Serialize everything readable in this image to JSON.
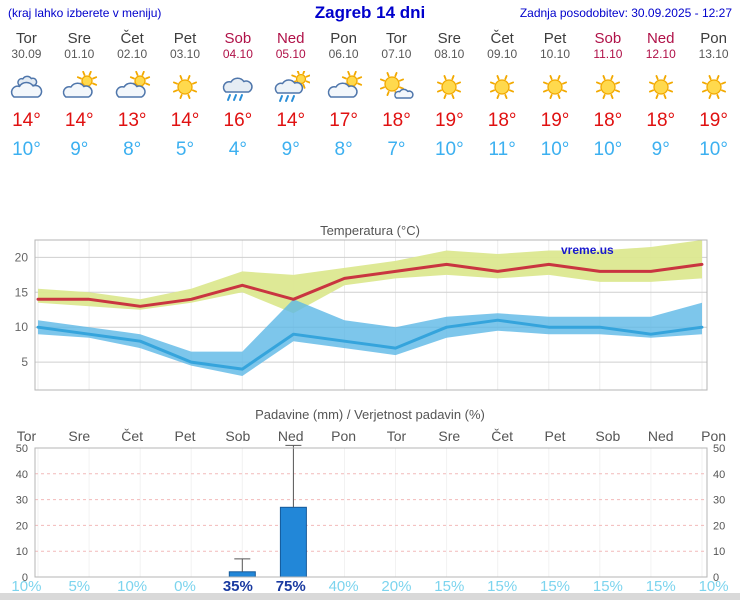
{
  "header": {
    "left_note": "(kraj lahko izberete v meniju)",
    "title": "Zagreb 14 dni",
    "updated": "Zadnja posodobitev: 30.09.2025 - 12:27"
  },
  "days": [
    {
      "name": "Tor",
      "date": "30.09",
      "weekend": false,
      "icon": "cloudy",
      "tmax": "14°",
      "tmin": "10°"
    },
    {
      "name": "Sre",
      "date": "01.10",
      "weekend": false,
      "icon": "partly",
      "tmax": "14°",
      "tmin": "9°"
    },
    {
      "name": "Čet",
      "date": "02.10",
      "weekend": false,
      "icon": "partly",
      "tmax": "13°",
      "tmin": "8°"
    },
    {
      "name": "Pet",
      "date": "03.10",
      "weekend": false,
      "icon": "sunny",
      "tmax": "14°",
      "tmin": "5°"
    },
    {
      "name": "Sob",
      "date": "04.10",
      "weekend": true,
      "icon": "rain",
      "tmax": "16°",
      "tmin": "4°"
    },
    {
      "name": "Ned",
      "date": "05.10",
      "weekend": true,
      "icon": "rain-sun",
      "tmax": "14°",
      "tmin": "9°"
    },
    {
      "name": "Pon",
      "date": "06.10",
      "weekend": false,
      "icon": "partly",
      "tmax": "17°",
      "tmin": "8°"
    },
    {
      "name": "Tor",
      "date": "07.10",
      "weekend": false,
      "icon": "mostly-sunny",
      "tmax": "18°",
      "tmin": "7°"
    },
    {
      "name": "Sre",
      "date": "08.10",
      "weekend": false,
      "icon": "sunny",
      "tmax": "19°",
      "tmin": "10°"
    },
    {
      "name": "Čet",
      "date": "09.10",
      "weekend": false,
      "icon": "sunny",
      "tmax": "18°",
      "tmin": "11°"
    },
    {
      "name": "Pet",
      "date": "10.10",
      "weekend": false,
      "icon": "sunny",
      "tmax": "19°",
      "tmin": "10°"
    },
    {
      "name": "Sob",
      "date": "11.10",
      "weekend": true,
      "icon": "sunny",
      "tmax": "18°",
      "tmin": "10°"
    },
    {
      "name": "Ned",
      "date": "12.10",
      "weekend": true,
      "icon": "sunny",
      "tmax": "18°",
      "tmin": "9°"
    },
    {
      "name": "Pon",
      "date": "13.10",
      "weekend": false,
      "icon": "sunny",
      "tmax": "19°",
      "tmin": "10°"
    }
  ],
  "chart_data": [
    {
      "type": "line",
      "title": "Temperatura (°C)",
      "watermark": "vreme.us",
      "x": [
        "30.09",
        "01.10",
        "02.10",
        "03.10",
        "04.10",
        "05.10",
        "06.10",
        "07.10",
        "08.10",
        "09.10",
        "10.10",
        "11.10",
        "12.10",
        "13.10"
      ],
      "yticks": [
        5,
        10,
        15,
        20
      ],
      "ylim": [
        1,
        22.5
      ],
      "grid": true,
      "legend": "none",
      "series": [
        {
          "name": "tmax",
          "color": "#c93540",
          "values": [
            14,
            14,
            13,
            14,
            16,
            14,
            17,
            18,
            19,
            18,
            19,
            18,
            18,
            19
          ]
        },
        {
          "name": "tmin",
          "color": "#35a4dc",
          "values": [
            10,
            9,
            8,
            5,
            4,
            9,
            8,
            7,
            10,
            11,
            10,
            10,
            9,
            10
          ]
        },
        {
          "name": "tmax_band_upper",
          "color": "#dce890",
          "values": [
            15.5,
            15,
            14,
            15.5,
            18,
            17.5,
            18.5,
            19.5,
            21,
            20.5,
            21,
            21,
            21.5,
            22.5
          ]
        },
        {
          "name": "tmax_band_lower",
          "color": "#dce890",
          "values": [
            13.5,
            13,
            12.5,
            13.5,
            15,
            12,
            16,
            17,
            17.5,
            17,
            17.5,
            16.5,
            16.5,
            17
          ]
        },
        {
          "name": "tmin_band_upper",
          "color": "#5cb8e6",
          "values": [
            11,
            10,
            9,
            6.5,
            6.5,
            14,
            11,
            10,
            11.5,
            12,
            11.5,
            11.5,
            11.5,
            13.5
          ]
        },
        {
          "name": "tmin_band_lower",
          "color": "#5cb8e6",
          "values": [
            9,
            8.5,
            7,
            4.5,
            3,
            8,
            7,
            6,
            8.5,
            9.5,
            9,
            9,
            8.5,
            9
          ]
        }
      ]
    },
    {
      "type": "bar",
      "title": "Padavine (mm) / Verjetnost padavin (%)",
      "categories": [
        "Tor",
        "Sre",
        "Čet",
        "Pet",
        "Sob",
        "Ned",
        "Pon",
        "Tor",
        "Sre",
        "Čet",
        "Pet",
        "Sob",
        "Ned",
        "Pon"
      ],
      "weekend_indices": [
        4,
        5,
        11,
        12
      ],
      "values": [
        0,
        0,
        0,
        0,
        2,
        27,
        0,
        0,
        0,
        0,
        0,
        0,
        0,
        0
      ],
      "whisker_max": [
        0,
        0,
        0,
        0,
        7,
        51,
        0,
        0,
        0,
        0,
        0,
        0,
        0,
        0
      ],
      "probabilities": [
        "10%",
        "5%",
        "10%",
        "0%",
        "35%",
        "75%",
        "40%",
        "20%",
        "15%",
        "15%",
        "15%",
        "15%",
        "15%",
        "10%"
      ],
      "prob_dark_indices": [
        4,
        5
      ],
      "yticks": [
        0,
        10,
        20,
        30,
        40,
        50
      ],
      "ylim": [
        0,
        50
      ],
      "bar_color": "#2287d8",
      "grid": true,
      "legend": "none"
    }
  ],
  "colors": {
    "header_blue": "#0000cc",
    "weekend_red": "#b01148",
    "tmax_red": "#e01111",
    "tmin_blue": "#3cb0f0",
    "prob_light": "#7cd4ee",
    "prob_dark": "#1a3aa0"
  }
}
